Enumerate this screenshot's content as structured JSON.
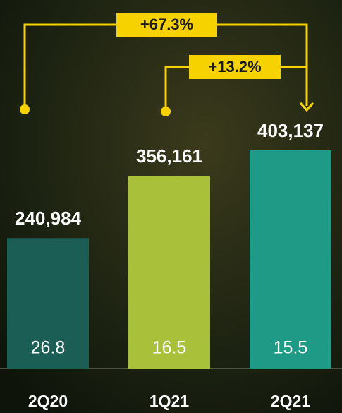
{
  "chart_data": {
    "type": "bar",
    "categories": [
      "2Q20",
      "1Q21",
      "2Q21"
    ],
    "values": [
      240984,
      356161,
      403137
    ],
    "value_labels": [
      "240,984",
      "356,161",
      "403,137"
    ],
    "colors": [
      "#1b5e55",
      "#a9c03a",
      "#1f9a86"
    ],
    "inner_values": [
      26.8,
      16.5,
      15.5
    ],
    "annotations": [
      "+67.3%",
      "+13.2%"
    ],
    "annotation_color": "#f5d200"
  }
}
